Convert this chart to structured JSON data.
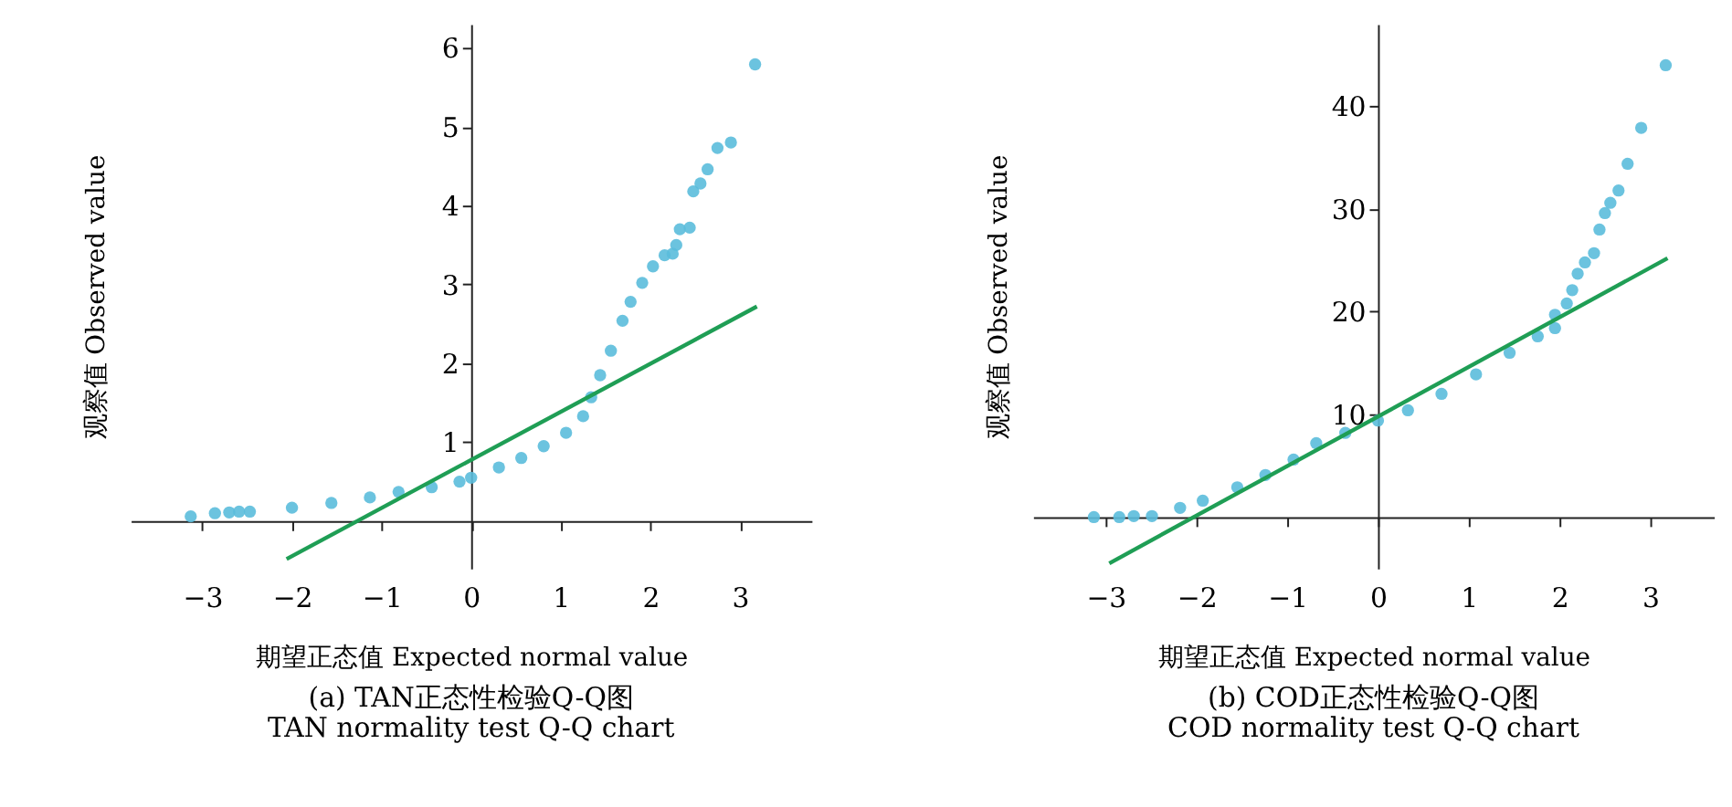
{
  "chart_data": [
    {
      "type": "scatter",
      "xlabel": "期望正态值 Expected normal value",
      "ylabel": "观察值 Observed value",
      "annotations": [
        "(a) TAN正态性检验Q-Q图",
        "TAN normality test Q-Q chart"
      ],
      "xlim": [
        -3.8,
        3.8
      ],
      "ylim": [
        -0.6,
        6.3
      ],
      "xticks": [
        -3,
        -2,
        -1,
        0,
        1,
        2,
        3
      ],
      "yticks": [
        1,
        2,
        3,
        4,
        5,
        6
      ],
      "grid": false,
      "series": [
        {
          "marker": "circle",
          "color": "#5bbcdc",
          "x": [
            -3.13,
            -2.86,
            -2.7,
            -2.59,
            -2.47,
            -2.0,
            -1.56,
            -1.13,
            -0.81,
            -0.44,
            -0.13,
            0,
            0.31,
            0.56,
            0.81,
            1.06,
            1.25,
            1.34,
            1.44,
            1.56,
            1.69,
            1.78,
            1.91,
            2.03,
            2.16,
            2.25,
            2.29,
            2.33,
            2.44,
            2.48,
            2.56,
            2.64,
            2.75,
            2.9,
            3.17
          ],
          "values": [
            0.06,
            0.1,
            0.11,
            0.12,
            0.12,
            0.17,
            0.23,
            0.3,
            0.37,
            0.43,
            0.5,
            0.55,
            0.68,
            0.8,
            0.95,
            1.12,
            1.33,
            1.57,
            1.85,
            2.16,
            2.54,
            2.78,
            3.02,
            3.23,
            3.37,
            3.39,
            3.5,
            3.7,
            3.72,
            4.18,
            4.28,
            4.46,
            4.73,
            4.8,
            5.79
          ]
        },
        {
          "type": "line",
          "marker": "none",
          "color": "#1f9e55",
          "x": [
            -2.06,
            3.19
          ],
          "values": [
            -0.48,
            2.72
          ]
        }
      ]
    },
    {
      "type": "scatter",
      "xlabel": "期望正态值 Expected normal value",
      "ylabel": "观察值 Observed value",
      "annotations": [
        "(b) COD正态性检验Q-Q图",
        "COD normality test Q-Q chart"
      ],
      "xlim": [
        -3.8,
        3.7
      ],
      "ylim": [
        -5,
        48
      ],
      "xticks": [
        -3,
        -2,
        -1,
        0,
        1,
        2,
        3
      ],
      "yticks": [
        10,
        20,
        30,
        40
      ],
      "grid": false,
      "series": [
        {
          "marker": "circle",
          "color": "#5bbcdc",
          "x": [
            -3.13,
            -2.85,
            -2.69,
            -2.49,
            -2.18,
            -1.93,
            -1.55,
            -1.24,
            -0.93,
            -0.68,
            -0.36,
            0,
            0.33,
            0.7,
            1.08,
            1.45,
            1.76,
            1.95,
            1.95,
            2.08,
            2.14,
            2.2,
            2.28,
            2.38,
            2.44,
            2.5,
            2.56,
            2.65,
            2.75,
            2.9,
            3.17
          ],
          "values": [
            0,
            0,
            0.1,
            0.1,
            0.9,
            1.6,
            2.9,
            4.1,
            5.6,
            7.2,
            8.2,
            9.4,
            10.4,
            12.0,
            13.9,
            16.0,
            17.6,
            18.4,
            19.7,
            20.8,
            22.1,
            23.7,
            24.8,
            25.7,
            28.0,
            29.6,
            30.6,
            31.8,
            34.4,
            37.9,
            44.0
          ]
        },
        {
          "type": "line",
          "marker": "none",
          "color": "#1f9e55",
          "x": [
            -2.96,
            3.19
          ],
          "values": [
            -4.5,
            25.2
          ]
        }
      ]
    }
  ]
}
